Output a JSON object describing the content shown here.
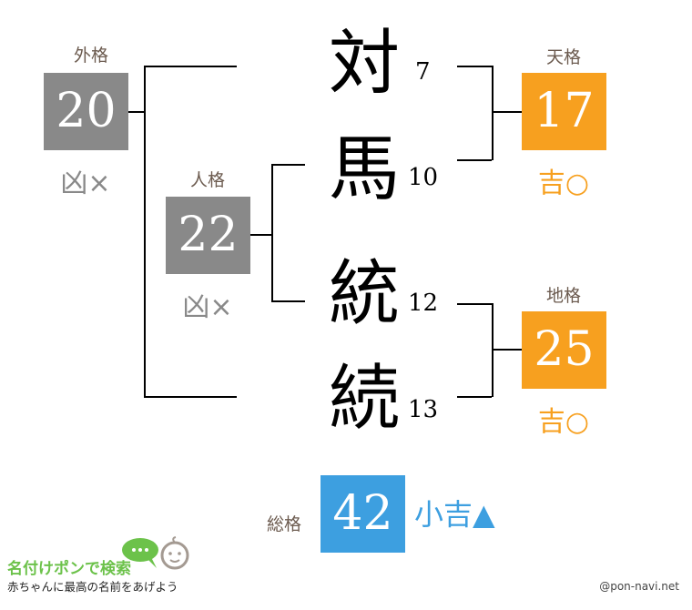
{
  "name_chars": [
    {
      "char": "対",
      "strokes": "7"
    },
    {
      "char": "馬",
      "strokes": "10"
    },
    {
      "char": "統",
      "strokes": "12"
    },
    {
      "char": "続",
      "strokes": "13"
    }
  ],
  "gaikaku": {
    "label": "外格",
    "value": "20",
    "result": "凶×",
    "color": "#898989"
  },
  "jinkaku": {
    "label": "人格",
    "value": "22",
    "result": "凶×",
    "color": "#898989"
  },
  "tenkaku": {
    "label": "天格",
    "value": "17",
    "result": "吉○",
    "color": "#f7a01f"
  },
  "chikaku": {
    "label": "地格",
    "value": "25",
    "result": "吉○",
    "color": "#f7a01f"
  },
  "soukaku": {
    "label": "総格",
    "value": "42",
    "result": "小吉▲",
    "color": "#3d9fe0"
  },
  "logo": {
    "title": "名付けポンで検索",
    "tagline": "赤ちゃんに最高の名前をあげよう"
  },
  "credit": "@pon-navi.net"
}
